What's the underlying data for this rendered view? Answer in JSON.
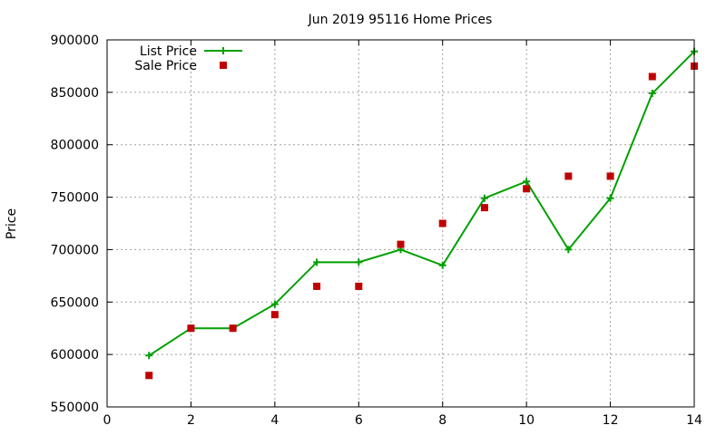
{
  "chart_data": {
    "type": "line",
    "title": "Jun 2019 95116 Home Prices",
    "xlabel": "",
    "ylabel": "Price",
    "xlim": [
      0,
      14
    ],
    "ylim": [
      550000,
      900000
    ],
    "x_ticks": [
      "0",
      "2",
      "4",
      "6",
      "8",
      "10",
      "12",
      "14"
    ],
    "y_ticks": [
      "550000",
      "600000",
      "650000",
      "700000",
      "750000",
      "800000",
      "850000",
      "900000"
    ],
    "grid": true,
    "legend_position": "top-left",
    "series": [
      {
        "name": "List Price",
        "style": "line-with-plus-markers",
        "color": "#00a000",
        "x": [
          1,
          2,
          3,
          4,
          5,
          6,
          7,
          8,
          9,
          10,
          11,
          12,
          13,
          14
        ],
        "y": [
          599000,
          625000,
          625000,
          648000,
          688000,
          688000,
          700000,
          685000,
          749000,
          765000,
          700000,
          749000,
          849000,
          889000
        ]
      },
      {
        "name": "Sale Price",
        "style": "square-markers",
        "color": "#c00000",
        "x": [
          1,
          2,
          3,
          4,
          5,
          6,
          7,
          8,
          9,
          10,
          11,
          12,
          13,
          14
        ],
        "y": [
          580000,
          625000,
          625000,
          638000,
          665000,
          665000,
          705000,
          725000,
          740000,
          758000,
          770000,
          770000,
          865000,
          875000
        ]
      }
    ]
  }
}
